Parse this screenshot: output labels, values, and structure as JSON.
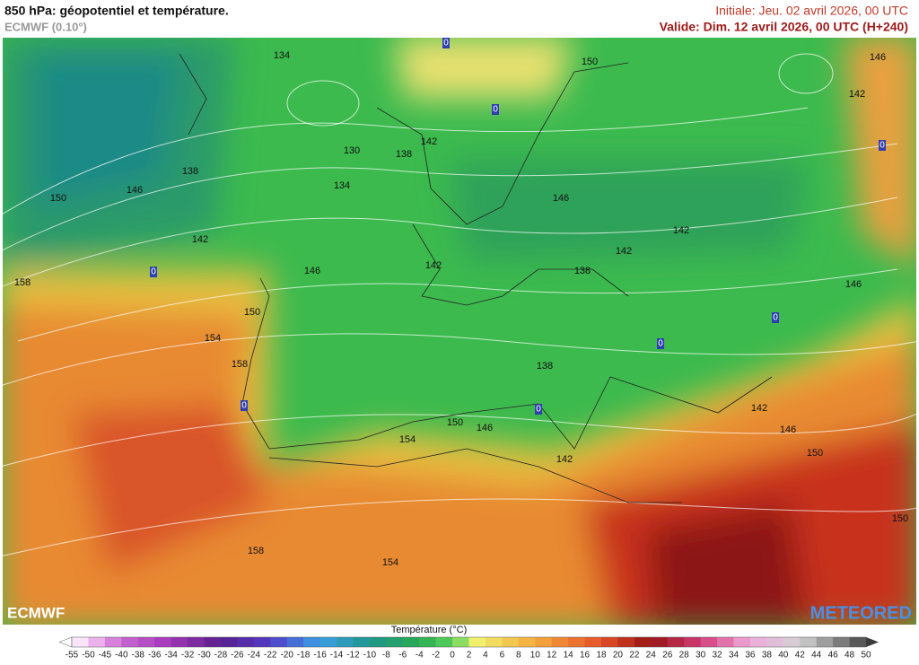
{
  "header": {
    "title": "850 hPa: géopotentiel et température.",
    "model": "ECMWF (0.10°)",
    "initial": "Initiale: Jeu. 02 avril 2026, 00 UTC",
    "valid": "Valide: Dim. 12 avril 2026, 00 UTC (H+240)"
  },
  "map": {
    "contour_labels": [
      "134",
      "130",
      "138",
      "142",
      "134",
      "138",
      "146",
      "150",
      "142",
      "146",
      "142",
      "158",
      "150",
      "154",
      "158",
      "146",
      "142",
      "138",
      "142",
      "150",
      "146",
      "142",
      "146",
      "138",
      "142",
      "146",
      "150",
      "150",
      "150",
      "146",
      "154",
      "142",
      "158",
      "154"
    ],
    "zero_labels": [
      "0",
      "0",
      "0",
      "0",
      "0",
      "0",
      "0",
      "0"
    ],
    "logo_left": "ECMWF",
    "logo_right": "METEORED"
  },
  "legend": {
    "title": "Température (°C)",
    "ticks": [
      -55,
      -50,
      -45,
      -40,
      -38,
      -36,
      -34,
      -32,
      -30,
      -28,
      -26,
      -24,
      -22,
      -20,
      -18,
      -16,
      -14,
      -12,
      -10,
      -8,
      -6,
      -4,
      -2,
      0,
      2,
      4,
      6,
      8,
      10,
      12,
      14,
      16,
      18,
      20,
      22,
      24,
      26,
      28,
      30,
      32,
      34,
      36,
      38,
      40,
      42,
      44,
      46,
      48,
      50
    ]
  }
}
